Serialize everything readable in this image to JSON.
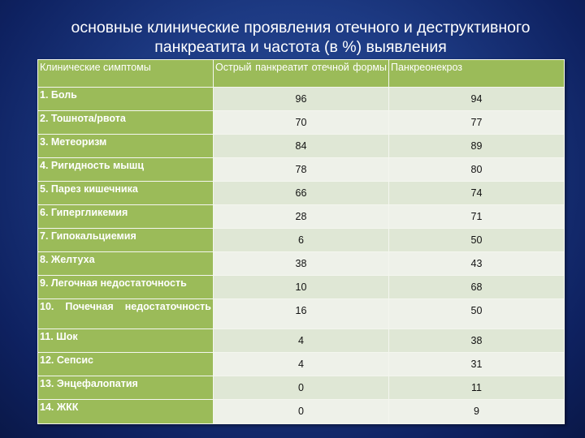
{
  "title_line1": "основные клинические проявления отечного и деструктивного",
  "title_line2": "панкреатита и частота (в %) выявления",
  "colors": {
    "header_green": "#9bbb59",
    "row_dark": "#dfe7d5",
    "row_light": "#eef1e9",
    "background": "#1d3a83"
  },
  "table": {
    "headers": [
      "Клинические симптомы",
      "Острый панкреатит отечной формы",
      "Панкреонекроз"
    ],
    "rows": [
      {
        "symptom": "1. Боль",
        "edematous": "96",
        "necrosis": "94"
      },
      {
        "symptom": "2. Тошнота/рвота",
        "edematous": "70",
        "necrosis": "77"
      },
      {
        "symptom": "3. Метеоризм",
        "edematous": "84",
        "necrosis": "89"
      },
      {
        "symptom": "4. Ригидность мышц",
        "edematous": "78",
        "necrosis": "80"
      },
      {
        "symptom": "5. Парез кишечника",
        "edematous": "66",
        "necrosis": "74"
      },
      {
        "symptom": "6. Гипергликемия",
        "edematous": "28",
        "necrosis": "71"
      },
      {
        "symptom": "7. Гипокальциемия",
        "edematous": "6",
        "necrosis": "50"
      },
      {
        "symptom": "8. Желтуха",
        "edematous": "38",
        "necrosis": "43"
      },
      {
        "symptom": "9. Легочная недостаточность",
        "edematous": "10",
        "necrosis": "68"
      },
      {
        "symptom": "10. Почечная недостаточность",
        "edematous": "16",
        "necrosis": "50"
      },
      {
        "symptom": "11. Шок",
        "edematous": "4",
        "necrosis": "38"
      },
      {
        "symptom": "12. Сепсис",
        "edematous": "4",
        "necrosis": "31"
      },
      {
        "symptom": "13. Энцефалопатия",
        "edematous": "0",
        "necrosis": "11"
      },
      {
        "symptom": "14. ЖКК",
        "edematous": "0",
        "necrosis": "9"
      }
    ]
  }
}
